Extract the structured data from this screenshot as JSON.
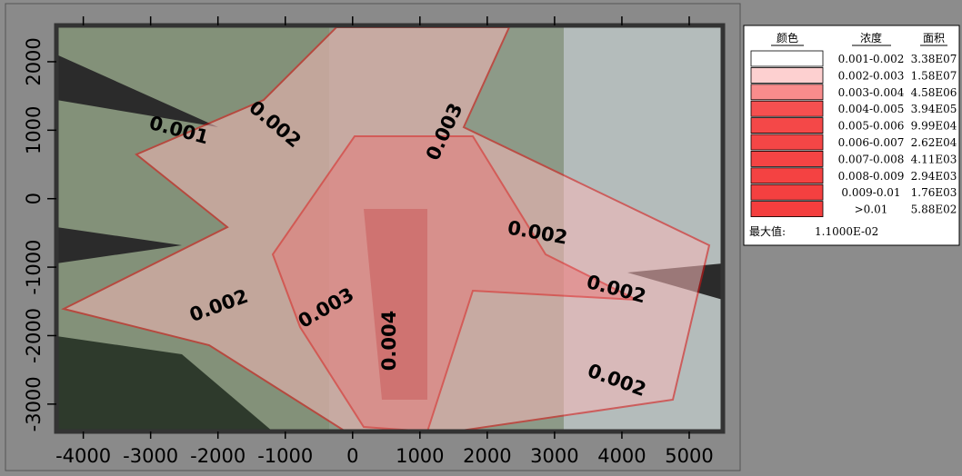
{
  "map": {
    "xlim": [
      -4400,
      5500
    ],
    "ylim": [
      -3400,
      2530
    ],
    "xticks": [
      -4000,
      -3000,
      -2000,
      -1000,
      0,
      1000,
      2000,
      3000,
      4000,
      5000
    ],
    "yticks": [
      -3000,
      -2000,
      -1000,
      0,
      1000,
      2000
    ],
    "contour_labels": [
      "0.001",
      "0.002",
      "0.003",
      "0.002",
      "0.002",
      "0.002",
      "0.003",
      "0.004",
      "0.002"
    ]
  },
  "legend": {
    "headers": [
      "颜色",
      "浓度",
      "面积"
    ],
    "rows": [
      {
        "range": "0.001-0.002",
        "area": "3.38E07",
        "color": "#ffffff"
      },
      {
        "range": "0.002-0.003",
        "area": "1.58E07",
        "color": "#fdd0d0"
      },
      {
        "range": "0.003-0.004",
        "area": "4.58E06",
        "color": "#f98c8c"
      },
      {
        "range": "0.004-0.005",
        "area": "3.94E05",
        "color": "#f55050"
      },
      {
        "range": "0.005-0.006",
        "area": "9.99E04",
        "color": "#f44848"
      },
      {
        "range": "0.006-0.007",
        "area": "2.62E04",
        "color": "#f44646"
      },
      {
        "range": "0.007-0.008",
        "area": "4.11E03",
        "color": "#f44444"
      },
      {
        "range": "0.008-0.009",
        "area": "2.94E03",
        "color": "#f44242"
      },
      {
        "range": "0.009-0.01",
        "area": "1.76E03",
        "color": "#f44040"
      },
      {
        "range": ">0.01",
        "area": "5.88E02",
        "color": "#f43e3e"
      }
    ],
    "max_label": "最大值:",
    "max_value": "1.1000E-02"
  }
}
